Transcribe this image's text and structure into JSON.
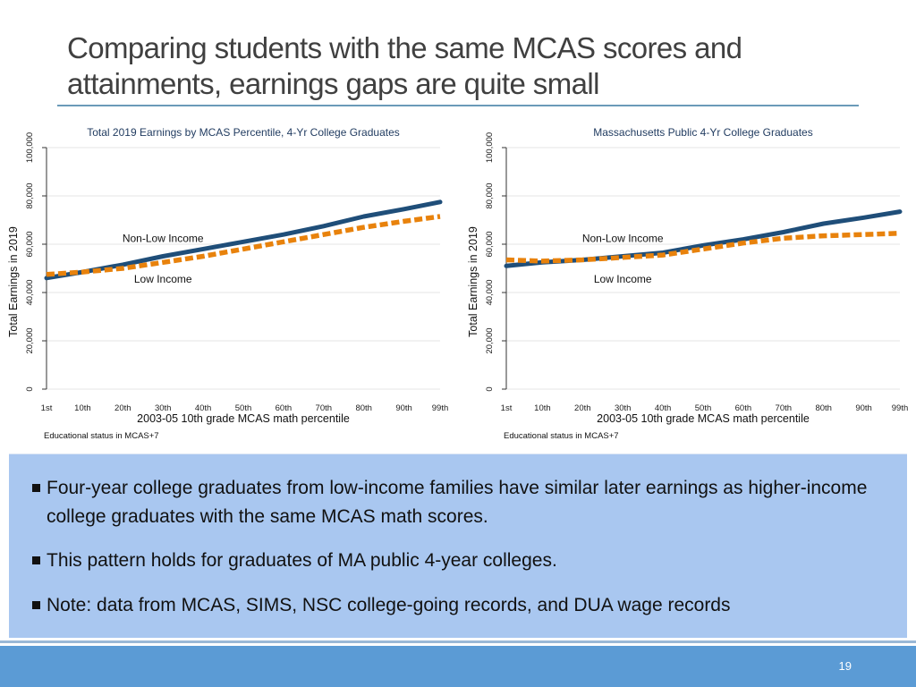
{
  "slide": {
    "title": "Comparing students with the same MCAS scores and attainments, earnings gaps are quite small",
    "page_number": "19",
    "colors": {
      "title": "#404040",
      "rule": "#6a9ab8",
      "box": "#a9c7f0",
      "footer": "#5b9bd5"
    }
  },
  "bullets": [
    "Four-year college graduates from low-income families have similar later earnings as higher-income college graduates with the same MCAS math scores.",
    "This pattern holds for graduates of MA public 4-year colleges.",
    "Note: data from MCAS, SIMS, NSC college-going records, and DUA wage records"
  ],
  "chart_data": [
    {
      "type": "line",
      "title": "Total 2019 Earnings by MCAS Percentile, 4-Yr College Graduates",
      "xlabel": "2003-05 10th grade MCAS math percentile",
      "ylabel": "Total Earnings in 2019",
      "note": "Educational status in MCAS+7",
      "xlim": [
        1,
        99
      ],
      "ylim": [
        0,
        100000
      ],
      "xticks": [
        1,
        10,
        20,
        30,
        40,
        50,
        60,
        70,
        80,
        90,
        99
      ],
      "xtick_labels": [
        "1st",
        "10th",
        "20th",
        "30th",
        "40th",
        "50th",
        "60th",
        "70th",
        "80th",
        "90th",
        "99th"
      ],
      "yticks": [
        0,
        20000,
        40000,
        60000,
        80000,
        100000
      ],
      "ytick_labels": [
        "0",
        "20,000",
        "40,000",
        "60,000",
        "80,000",
        "100,000"
      ],
      "annotations": [
        {
          "text": "Non-Low Income",
          "x": 30,
          "y": 61000
        },
        {
          "text": "Low Income",
          "x": 30,
          "y": 44000
        }
      ],
      "series": [
        {
          "name": "Non-Low Income",
          "color": "#1f4e79",
          "style": "solid",
          "x": [
            1,
            10,
            20,
            30,
            40,
            50,
            60,
            70,
            80,
            90,
            99
          ],
          "y": [
            46000,
            48500,
            51500,
            55000,
            58000,
            61000,
            64000,
            67500,
            71500,
            74500,
            77500
          ]
        },
        {
          "name": "Low Income",
          "color": "#e8820c",
          "style": "dash",
          "x": [
            1,
            10,
            20,
            30,
            40,
            50,
            60,
            70,
            80,
            90,
            99
          ],
          "y": [
            47500,
            48500,
            50000,
            52500,
            55000,
            58000,
            61000,
            64000,
            67000,
            69500,
            71500
          ]
        }
      ]
    },
    {
      "type": "line",
      "title": "Massachusetts Public 4-Yr College Graduates",
      "xlabel": "2003-05 10th grade MCAS math percentile",
      "ylabel": "Total Earnings in 2019",
      "note": "Educational status in MCAS+7",
      "xlim": [
        1,
        99
      ],
      "ylim": [
        0,
        100000
      ],
      "xticks": [
        1,
        10,
        20,
        30,
        40,
        50,
        60,
        70,
        80,
        90,
        99
      ],
      "xtick_labels": [
        "1st",
        "10th",
        "20th",
        "30th",
        "40th",
        "50th",
        "60th",
        "70th",
        "80th",
        "90th",
        "99th"
      ],
      "yticks": [
        0,
        20000,
        40000,
        60000,
        80000,
        100000
      ],
      "ytick_labels": [
        "0",
        "20,000",
        "40,000",
        "60,000",
        "80,000",
        "100,000"
      ],
      "annotations": [
        {
          "text": "Non-Low Income",
          "x": 30,
          "y": 61000
        },
        {
          "text": "Low Income",
          "x": 30,
          "y": 44000
        }
      ],
      "series": [
        {
          "name": "Non-Low Income",
          "color": "#1f4e79",
          "style": "solid",
          "x": [
            1,
            10,
            20,
            30,
            40,
            50,
            60,
            70,
            80,
            90,
            99
          ],
          "y": [
            51000,
            52500,
            53500,
            55000,
            56500,
            59500,
            62000,
            65000,
            68500,
            71000,
            73500
          ]
        },
        {
          "name": "Low Income",
          "color": "#e8820c",
          "style": "dash",
          "x": [
            1,
            10,
            20,
            30,
            40,
            50,
            60,
            70,
            80,
            90,
            99
          ],
          "y": [
            53500,
            53000,
            53500,
            54500,
            55500,
            58000,
            60500,
            62500,
            63500,
            64000,
            64500
          ]
        }
      ]
    }
  ]
}
